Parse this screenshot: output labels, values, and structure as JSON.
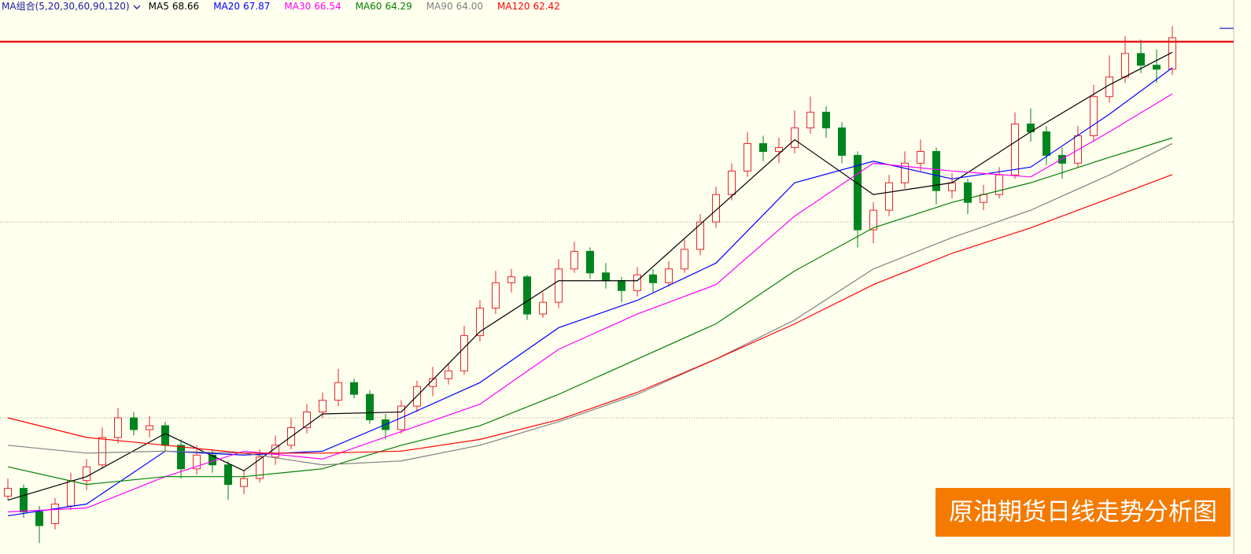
{
  "chart_data": {
    "type": "candlestick",
    "title": "原油期货日线走势分析图",
    "legend_title": "MA组合(5,20,30,60,90,120)",
    "up_color": "#e8262b",
    "down_color": "#00841f",
    "candles": [
      [
        46.0,
        46.9,
        45.8,
        46.4
      ],
      [
        46.4,
        46.6,
        44.9,
        45.2
      ],
      [
        45.2,
        45.5,
        43.6,
        44.5
      ],
      [
        44.6,
        45.9,
        44.3,
        45.6
      ],
      [
        45.5,
        47.2,
        45.3,
        46.8
      ],
      [
        46.8,
        47.9,
        46.3,
        47.5
      ],
      [
        47.6,
        49.5,
        47.4,
        49.0
      ],
      [
        49.0,
        50.5,
        48.7,
        50.0
      ],
      [
        50.0,
        50.3,
        49.1,
        49.4
      ],
      [
        49.4,
        50.1,
        49.0,
        49.6
      ],
      [
        49.6,
        49.8,
        48.3,
        48.6
      ],
      [
        48.6,
        48.9,
        46.9,
        47.4
      ],
      [
        47.4,
        48.6,
        47.1,
        48.1
      ],
      [
        48.1,
        48.4,
        47.2,
        47.6
      ],
      [
        47.6,
        47.8,
        45.8,
        46.6
      ],
      [
        46.5,
        47.3,
        46.1,
        46.9
      ],
      [
        46.9,
        48.4,
        46.7,
        48.0
      ],
      [
        48.0,
        49.1,
        47.6,
        48.6
      ],
      [
        48.6,
        50.0,
        48.4,
        49.5
      ],
      [
        49.5,
        50.7,
        49.2,
        50.3
      ],
      [
        50.3,
        51.3,
        50.0,
        50.9
      ],
      [
        50.9,
        52.5,
        50.6,
        51.8
      ],
      [
        51.8,
        52.0,
        51.0,
        51.2
      ],
      [
        51.2,
        51.4,
        49.7,
        49.9
      ],
      [
        49.9,
        50.2,
        48.9,
        49.4
      ],
      [
        49.4,
        50.9,
        49.2,
        50.6
      ],
      [
        50.6,
        51.9,
        50.3,
        51.6
      ],
      [
        51.6,
        52.6,
        51.1,
        52.0
      ],
      [
        52.0,
        52.8,
        51.7,
        52.4
      ],
      [
        52.4,
        54.7,
        52.2,
        54.2
      ],
      [
        54.2,
        56.0,
        53.9,
        55.6
      ],
      [
        55.6,
        57.5,
        55.3,
        56.9
      ],
      [
        56.9,
        57.6,
        56.4,
        57.2
      ],
      [
        57.2,
        57.3,
        55.0,
        55.3
      ],
      [
        55.3,
        56.4,
        55.1,
        55.9
      ],
      [
        55.9,
        58.1,
        55.6,
        57.6
      ],
      [
        57.6,
        59.0,
        57.4,
        58.5
      ],
      [
        58.5,
        58.7,
        57.1,
        57.4
      ],
      [
        57.4,
        57.9,
        56.6,
        57.0
      ],
      [
        57.0,
        57.2,
        55.9,
        56.5
      ],
      [
        56.5,
        57.7,
        56.2,
        57.3
      ],
      [
        57.3,
        57.6,
        56.4,
        56.9
      ],
      [
        56.9,
        58.0,
        56.7,
        57.6
      ],
      [
        57.6,
        59.1,
        57.4,
        58.6
      ],
      [
        58.6,
        60.4,
        58.3,
        60.0
      ],
      [
        60.0,
        61.8,
        59.7,
        61.4
      ],
      [
        61.4,
        63.0,
        61.1,
        62.6
      ],
      [
        62.6,
        64.6,
        62.3,
        64.0
      ],
      [
        64.0,
        64.4,
        63.1,
        63.6
      ],
      [
        63.6,
        64.3,
        63.0,
        63.8
      ],
      [
        63.8,
        65.7,
        63.5,
        64.8
      ],
      [
        64.8,
        66.4,
        64.5,
        65.6
      ],
      [
        65.6,
        65.9,
        64.3,
        64.8
      ],
      [
        64.8,
        65.1,
        63.0,
        63.4
      ],
      [
        63.4,
        63.6,
        58.7,
        59.6
      ],
      [
        59.6,
        61.0,
        58.9,
        60.6
      ],
      [
        60.6,
        62.4,
        60.3,
        62.0
      ],
      [
        62.0,
        63.6,
        61.7,
        63.0
      ],
      [
        63.0,
        64.2,
        62.6,
        63.6
      ],
      [
        63.6,
        63.8,
        60.9,
        61.6
      ],
      [
        61.6,
        62.5,
        61.2,
        62.0
      ],
      [
        62.0,
        62.2,
        60.4,
        61.0
      ],
      [
        61.0,
        61.9,
        60.6,
        61.4
      ],
      [
        61.4,
        62.8,
        61.2,
        62.4
      ],
      [
        62.4,
        65.6,
        62.2,
        65.0
      ],
      [
        65.0,
        65.8,
        64.1,
        64.6
      ],
      [
        64.6,
        64.9,
        62.9,
        63.4
      ],
      [
        63.4,
        63.8,
        62.2,
        63.0
      ],
      [
        63.0,
        64.9,
        62.8,
        64.4
      ],
      [
        64.4,
        67.0,
        64.1,
        66.4
      ],
      [
        66.4,
        68.5,
        66.1,
        67.4
      ],
      [
        67.4,
        69.5,
        67.1,
        68.6
      ],
      [
        68.6,
        69.3,
        67.6,
        68.0
      ],
      [
        68.0,
        68.8,
        67.1,
        67.8
      ],
      [
        67.8,
        70.0,
        67.5,
        69.4
      ]
    ],
    "ma_index": [
      0,
      5,
      10,
      15,
      20,
      25,
      30,
      35,
      40,
      45,
      50,
      55,
      60,
      65,
      70,
      74
    ],
    "series": [
      {
        "name": "MA5",
        "color": "#000000",
        "value_label": "68.66",
        "values": [
          45.8,
          47.0,
          49.2,
          47.3,
          50.2,
          50.3,
          54.4,
          57.0,
          57.0,
          60.6,
          64.2,
          61.4,
          62.0,
          64.6,
          67.0,
          68.66
        ]
      },
      {
        "name": "MA20",
        "color": "#0000ff",
        "value_label": "67.87",
        "values": [
          45.0,
          45.6,
          48.3,
          48.1,
          48.3,
          50.0,
          51.8,
          54.6,
          56.0,
          57.9,
          62.0,
          63.1,
          62.2,
          62.8,
          65.5,
          67.87
        ]
      },
      {
        "name": "MA30",
        "color": "#ff00ff",
        "value_label": "66.54",
        "values": [
          45.2,
          45.4,
          47.0,
          48.3,
          47.9,
          49.3,
          50.7,
          53.5,
          55.3,
          56.8,
          60.3,
          63.0,
          62.6,
          62.3,
          64.6,
          66.54
        ]
      },
      {
        "name": "MA60",
        "color": "#008000",
        "value_label": "64.29",
        "values": [
          47.5,
          46.6,
          47.0,
          47.0,
          47.4,
          48.6,
          49.6,
          51.2,
          53.0,
          54.8,
          57.5,
          59.7,
          61.0,
          62.0,
          63.3,
          64.29
        ]
      },
      {
        "name": "MA90",
        "color": "#808080",
        "value_label": "64.00",
        "values": [
          48.6,
          48.2,
          48.3,
          48.2,
          47.6,
          47.8,
          48.6,
          49.8,
          51.2,
          53.0,
          55.0,
          57.6,
          59.2,
          60.6,
          62.4,
          64.0
        ]
      },
      {
        "name": "MA120",
        "color": "#ff0000",
        "value_label": "62.42",
        "values": [
          50.0,
          49.0,
          48.6,
          48.2,
          48.2,
          48.3,
          48.9,
          49.9,
          51.3,
          53.0,
          54.8,
          56.8,
          58.4,
          59.7,
          61.2,
          62.42
        ]
      }
    ],
    "ylim": [
      43.05,
      71.33
    ],
    "gridlines": [
      50,
      60
    ],
    "hline": {
      "value": 69.2,
      "color": "#e8151b"
    }
  }
}
